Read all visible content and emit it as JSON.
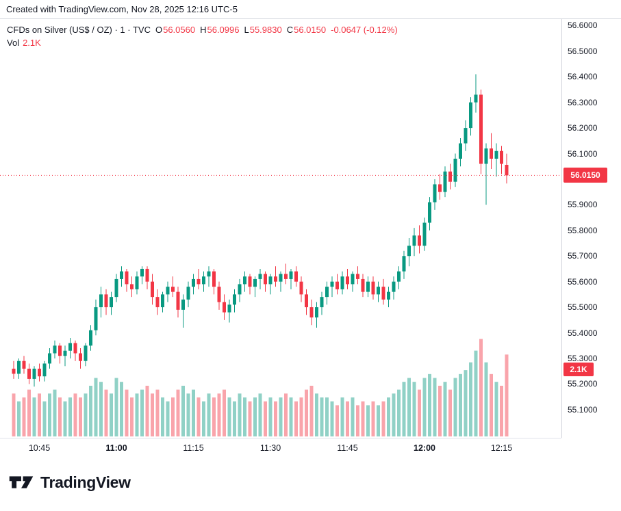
{
  "attribution": "Created with TradingView.com, Nov 28, 2025 12:16 UTC-5",
  "legend": {
    "symbol": "CFDs on Silver (US$ / OZ) · 1 · TVC",
    "ohlc": [
      {
        "label": "O",
        "value": "56.0560"
      },
      {
        "label": "H",
        "value": "56.0996"
      },
      {
        "label": "L",
        "value": "55.9830"
      },
      {
        "label": "C",
        "value": "56.0150"
      }
    ],
    "change": "-0.0647 (-0.12%)",
    "vol_label": "Vol",
    "vol_value": "2.1K"
  },
  "price_axis": {
    "labels": [
      "56.6000",
      "56.5000",
      "56.4000",
      "56.3000",
      "56.2000",
      "56.1000",
      "56.0000",
      "55.9000",
      "55.8000",
      "55.7000",
      "55.6000",
      "55.5000",
      "55.4000",
      "55.3000",
      "55.2000",
      "55.1000"
    ],
    "price_badge": "56.0150",
    "volume_badge": "2.1K"
  },
  "time_axis": {
    "labels": [
      {
        "text": "10:45",
        "minute_index": 5,
        "bold": false
      },
      {
        "text": "11:00",
        "minute_index": 20,
        "bold": true
      },
      {
        "text": "11:15",
        "minute_index": 35,
        "bold": false
      },
      {
        "text": "11:30",
        "minute_index": 50,
        "bold": false
      },
      {
        "text": "11:45",
        "minute_index": 65,
        "bold": false
      },
      {
        "text": "12:00",
        "minute_index": 80,
        "bold": true
      },
      {
        "text": "12:15",
        "minute_index": 95,
        "bold": false
      }
    ]
  },
  "footer": {
    "brand": "TradingView"
  },
  "colors": {
    "up": "#089981",
    "down": "#F23645",
    "text": "#131722",
    "axis_line": "#d1d4dc",
    "badge_bg": "#F23645",
    "badge_text": "#ffffff"
  },
  "chart_data": {
    "type": "candlestick",
    "title": "CFDs on Silver (US$ / OZ) · 1 · TVC",
    "symbol": "CFDs on Silver (US$ / OZ)",
    "interval": "1",
    "exchange": "TVC",
    "last_price": 56.015,
    "open": 56.056,
    "high": 56.0996,
    "low": 55.983,
    "close": 56.015,
    "change": -0.0647,
    "change_pct": -0.12,
    "volume": "2.1K",
    "volume_unit": "K",
    "ylim": [
      54.99,
      56.625
    ],
    "grid": false,
    "legend_position": "top-left",
    "candles": [
      [
        "10:40",
        55.26,
        55.29,
        55.22,
        55.24,
        1.1
      ],
      [
        "10:41",
        55.24,
        55.3,
        55.22,
        55.29,
        0.9
      ],
      [
        "10:42",
        55.29,
        55.31,
        55.24,
        55.26,
        1.0
      ],
      [
        "10:43",
        55.26,
        55.28,
        55.2,
        55.22,
        1.2
      ],
      [
        "10:44",
        55.22,
        55.27,
        55.19,
        55.26,
        1.0
      ],
      [
        "10:45",
        55.26,
        55.28,
        55.21,
        55.23,
        1.1
      ],
      [
        "10:46",
        55.23,
        55.29,
        55.21,
        55.28,
        0.9
      ],
      [
        "10:47",
        55.28,
        55.34,
        55.26,
        55.32,
        1.1
      ],
      [
        "10:48",
        55.32,
        55.37,
        55.3,
        55.35,
        1.2
      ],
      [
        "10:49",
        55.35,
        55.36,
        55.28,
        55.31,
        1.0
      ],
      [
        "10:50",
        55.31,
        55.35,
        55.27,
        55.33,
        0.9
      ],
      [
        "10:51",
        55.33,
        55.38,
        55.3,
        55.36,
        1.0
      ],
      [
        "10:52",
        55.36,
        55.37,
        55.29,
        55.32,
        1.1
      ],
      [
        "10:53",
        55.32,
        55.34,
        55.26,
        55.29,
        1.0
      ],
      [
        "10:54",
        55.29,
        55.36,
        55.27,
        55.35,
        1.1
      ],
      [
        "10:55",
        55.35,
        55.43,
        55.33,
        55.41,
        1.3
      ],
      [
        "10:56",
        55.41,
        55.53,
        55.39,
        55.5,
        1.5
      ],
      [
        "10:57",
        55.5,
        55.58,
        55.46,
        55.55,
        1.4
      ],
      [
        "10:58",
        55.55,
        55.57,
        55.47,
        55.5,
        1.2
      ],
      [
        "10:59",
        55.5,
        55.56,
        55.47,
        55.54,
        1.1
      ],
      [
        "11:00",
        55.54,
        55.63,
        55.52,
        55.61,
        1.5
      ],
      [
        "11:01",
        55.61,
        55.66,
        55.58,
        55.64,
        1.4
      ],
      [
        "11:02",
        55.64,
        55.65,
        55.56,
        55.59,
        1.2
      ],
      [
        "11:03",
        55.59,
        55.62,
        55.54,
        55.57,
        1.0
      ],
      [
        "11:04",
        55.57,
        55.64,
        55.55,
        55.62,
        1.1
      ],
      [
        "11:05",
        55.62,
        55.66,
        55.59,
        55.65,
        1.2
      ],
      [
        "11:06",
        55.65,
        55.66,
        55.57,
        55.6,
        1.3
      ],
      [
        "11:07",
        55.6,
        55.63,
        55.51,
        55.54,
        1.1
      ],
      [
        "11:08",
        55.54,
        55.57,
        55.47,
        55.5,
        1.2
      ],
      [
        "11:09",
        55.5,
        55.56,
        55.48,
        55.55,
        1.0
      ],
      [
        "11:10",
        55.55,
        55.6,
        55.52,
        55.58,
        0.9
      ],
      [
        "11:11",
        55.58,
        55.62,
        55.54,
        55.56,
        1.0
      ],
      [
        "11:12",
        55.56,
        55.58,
        55.46,
        55.49,
        1.2
      ],
      [
        "11:13",
        55.49,
        55.55,
        55.42,
        55.53,
        1.3
      ],
      [
        "11:14",
        55.53,
        55.6,
        55.5,
        55.58,
        1.1
      ],
      [
        "11:15",
        55.58,
        55.63,
        55.55,
        55.61,
        1.2
      ],
      [
        "11:16",
        55.61,
        55.65,
        55.57,
        55.59,
        1.0
      ],
      [
        "11:17",
        55.59,
        55.64,
        55.56,
        55.62,
        0.9
      ],
      [
        "11:18",
        55.62,
        55.66,
        55.58,
        55.64,
        1.1
      ],
      [
        "11:19",
        55.64,
        55.65,
        55.55,
        55.58,
        1.0
      ],
      [
        "11:20",
        55.58,
        55.6,
        55.49,
        55.52,
        1.1
      ],
      [
        "11:21",
        55.52,
        55.55,
        55.45,
        55.48,
        1.2
      ],
      [
        "11:22",
        55.48,
        55.53,
        55.44,
        55.51,
        1.0
      ],
      [
        "11:23",
        55.51,
        55.57,
        55.48,
        55.55,
        0.9
      ],
      [
        "11:24",
        55.55,
        55.61,
        55.52,
        55.59,
        1.1
      ],
      [
        "11:25",
        55.59,
        55.64,
        55.56,
        55.62,
        1.0
      ],
      [
        "11:26",
        55.62,
        55.63,
        55.55,
        55.58,
        0.9
      ],
      [
        "11:27",
        55.58,
        55.62,
        55.54,
        55.61,
        1.0
      ],
      [
        "11:28",
        55.61,
        55.65,
        55.57,
        55.63,
        1.1
      ],
      [
        "11:29",
        55.63,
        55.64,
        55.56,
        55.59,
        0.9
      ],
      [
        "11:30",
        55.59,
        55.63,
        55.55,
        55.62,
        1.0
      ],
      [
        "11:31",
        55.62,
        55.66,
        55.58,
        55.6,
        0.9
      ],
      [
        "11:32",
        55.6,
        55.64,
        55.56,
        55.63,
        1.0
      ],
      [
        "11:33",
        55.63,
        55.67,
        55.59,
        55.61,
        1.1
      ],
      [
        "11:34",
        55.61,
        55.65,
        55.57,
        55.64,
        1.0
      ],
      [
        "11:35",
        55.64,
        55.66,
        55.58,
        55.6,
        0.9
      ],
      [
        "11:36",
        55.6,
        55.62,
        55.52,
        55.55,
        1.0
      ],
      [
        "11:37",
        55.55,
        55.57,
        55.47,
        55.5,
        1.2
      ],
      [
        "11:38",
        55.5,
        55.53,
        55.43,
        55.46,
        1.3
      ],
      [
        "11:39",
        55.46,
        55.52,
        55.42,
        55.5,
        1.1
      ],
      [
        "11:40",
        55.5,
        55.56,
        55.47,
        55.54,
        1.0
      ],
      [
        "11:41",
        55.54,
        55.6,
        55.51,
        55.58,
        1.0
      ],
      [
        "11:42",
        55.58,
        55.62,
        55.54,
        55.6,
        0.9
      ],
      [
        "11:43",
        55.6,
        55.63,
        55.55,
        55.57,
        0.8
      ],
      [
        "11:44",
        55.57,
        55.64,
        55.55,
        55.62,
        1.0
      ],
      [
        "11:45",
        55.62,
        55.65,
        55.57,
        55.59,
        0.9
      ],
      [
        "11:46",
        55.59,
        55.64,
        55.56,
        55.63,
        1.0
      ],
      [
        "11:47",
        55.63,
        55.66,
        55.59,
        55.61,
        0.8
      ],
      [
        "11:48",
        55.61,
        55.63,
        55.54,
        55.56,
        0.9
      ],
      [
        "11:49",
        55.56,
        55.62,
        55.54,
        55.6,
        0.8
      ],
      [
        "11:50",
        55.6,
        55.62,
        55.53,
        55.55,
        0.9
      ],
      [
        "11:51",
        55.55,
        55.6,
        55.52,
        55.58,
        0.8
      ],
      [
        "11:52",
        55.58,
        55.61,
        55.51,
        55.53,
        0.9
      ],
      [
        "11:53",
        55.53,
        55.58,
        55.5,
        55.56,
        1.0
      ],
      [
        "11:54",
        55.56,
        55.62,
        55.53,
        55.6,
        1.1
      ],
      [
        "11:55",
        55.6,
        55.66,
        55.57,
        55.64,
        1.2
      ],
      [
        "11:56",
        55.64,
        55.72,
        55.61,
        55.7,
        1.4
      ],
      [
        "11:57",
        55.7,
        55.77,
        55.66,
        55.74,
        1.5
      ],
      [
        "11:58",
        55.74,
        55.81,
        55.7,
        55.78,
        1.4
      ],
      [
        "11:59",
        55.78,
        55.82,
        55.71,
        55.74,
        1.2
      ],
      [
        "12:00",
        55.74,
        55.85,
        55.72,
        55.83,
        1.5
      ],
      [
        "12:01",
        55.83,
        55.93,
        55.8,
        55.91,
        1.6
      ],
      [
        "12:02",
        55.91,
        56.0,
        55.88,
        55.98,
        1.5
      ],
      [
        "12:03",
        55.98,
        56.02,
        55.92,
        55.95,
        1.3
      ],
      [
        "12:04",
        55.95,
        56.05,
        55.93,
        56.03,
        1.4
      ],
      [
        "12:05",
        56.03,
        56.06,
        55.96,
        55.99,
        1.2
      ],
      [
        "12:06",
        55.99,
        56.1,
        55.97,
        56.08,
        1.5
      ],
      [
        "12:07",
        56.08,
        56.16,
        56.05,
        56.14,
        1.6
      ],
      [
        "12:08",
        56.14,
        56.23,
        56.11,
        56.2,
        1.7
      ],
      [
        "12:09",
        56.2,
        56.32,
        56.17,
        56.3,
        1.9
      ],
      [
        "12:10",
        56.3,
        56.41,
        56.26,
        56.33,
        2.2
      ],
      [
        "12:11",
        56.33,
        56.35,
        56.02,
        56.06,
        2.5
      ],
      [
        "12:12",
        56.06,
        56.14,
        55.9,
        56.12,
        1.9
      ],
      [
        "12:13",
        56.12,
        56.18,
        56.04,
        56.08,
        1.6
      ],
      [
        "12:14",
        56.08,
        56.14,
        56.01,
        56.11,
        1.4
      ],
      [
        "12:15",
        56.11,
        56.13,
        56.02,
        56.06,
        1.3
      ],
      [
        "12:16",
        56.056,
        56.0996,
        55.983,
        56.015,
        2.1
      ]
    ]
  }
}
